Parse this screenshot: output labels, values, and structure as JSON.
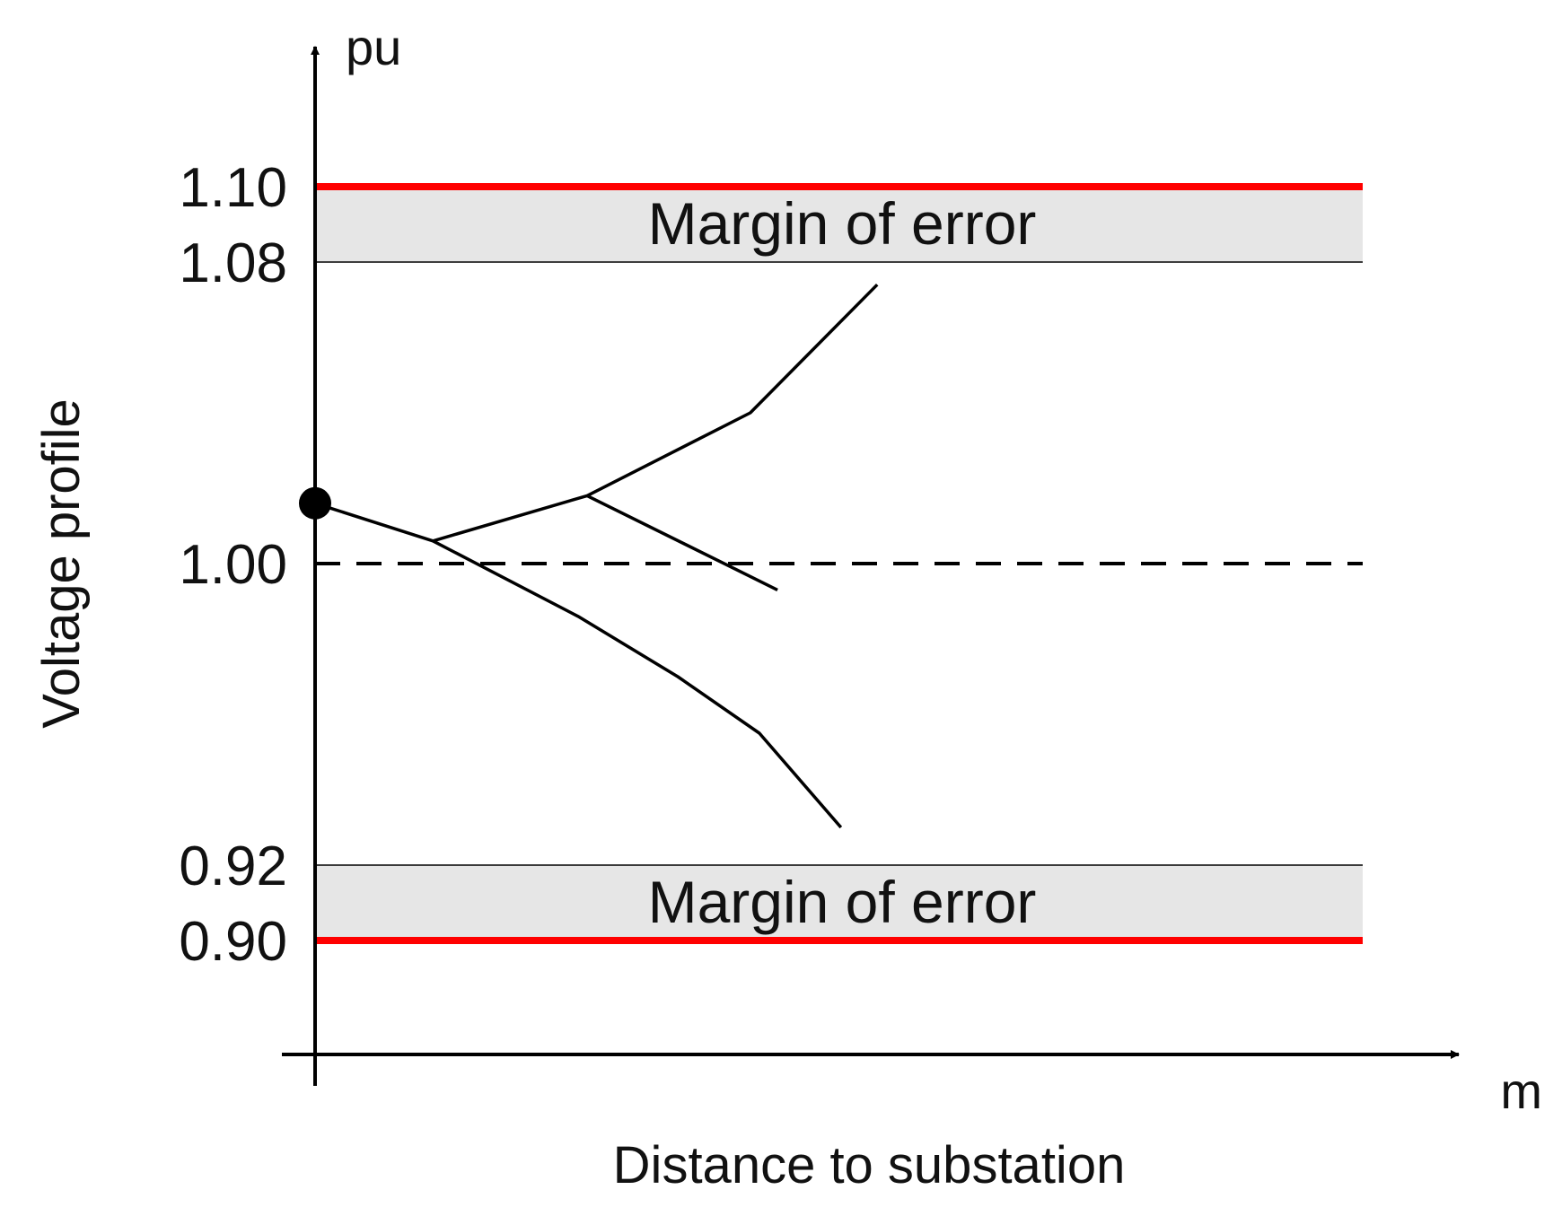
{
  "chart_data": {
    "type": "line",
    "title": "",
    "xlabel": "Distance to substation",
    "ylabel": "Voltage profile",
    "x_unit": "m",
    "y_unit": "pu",
    "y_ticks": [
      "1.10",
      "1.08",
      "1.00",
      "0.92",
      "0.90"
    ],
    "limits": {
      "upper": 1.1,
      "lower": 0.9,
      "nominal": 1.0
    },
    "bands": [
      {
        "label": "Margin of error",
        "from": 1.08,
        "to": 1.1
      },
      {
        "label": "Margin of error",
        "from": 0.9,
        "to": 0.92
      }
    ],
    "source_point": {
      "x": 0,
      "y": 1.016
    },
    "series": [
      {
        "points": [
          [
            0,
            1.016
          ],
          [
            13,
            1.006
          ],
          [
            30,
            1.018
          ],
          [
            48,
            1.04
          ],
          [
            62,
            1.074
          ]
        ]
      },
      {
        "points": [
          [
            30,
            1.018
          ],
          [
            51,
            0.993
          ]
        ]
      },
      {
        "points": [
          [
            13,
            1.006
          ],
          [
            29,
            0.986
          ],
          [
            40,
            0.97
          ],
          [
            49,
            0.955
          ],
          [
            58,
            0.93
          ]
        ]
      }
    ],
    "colors": {
      "limit": "#ff0000",
      "band": "#e6e6e6",
      "curve": "#000000",
      "axis": "#000000"
    }
  }
}
